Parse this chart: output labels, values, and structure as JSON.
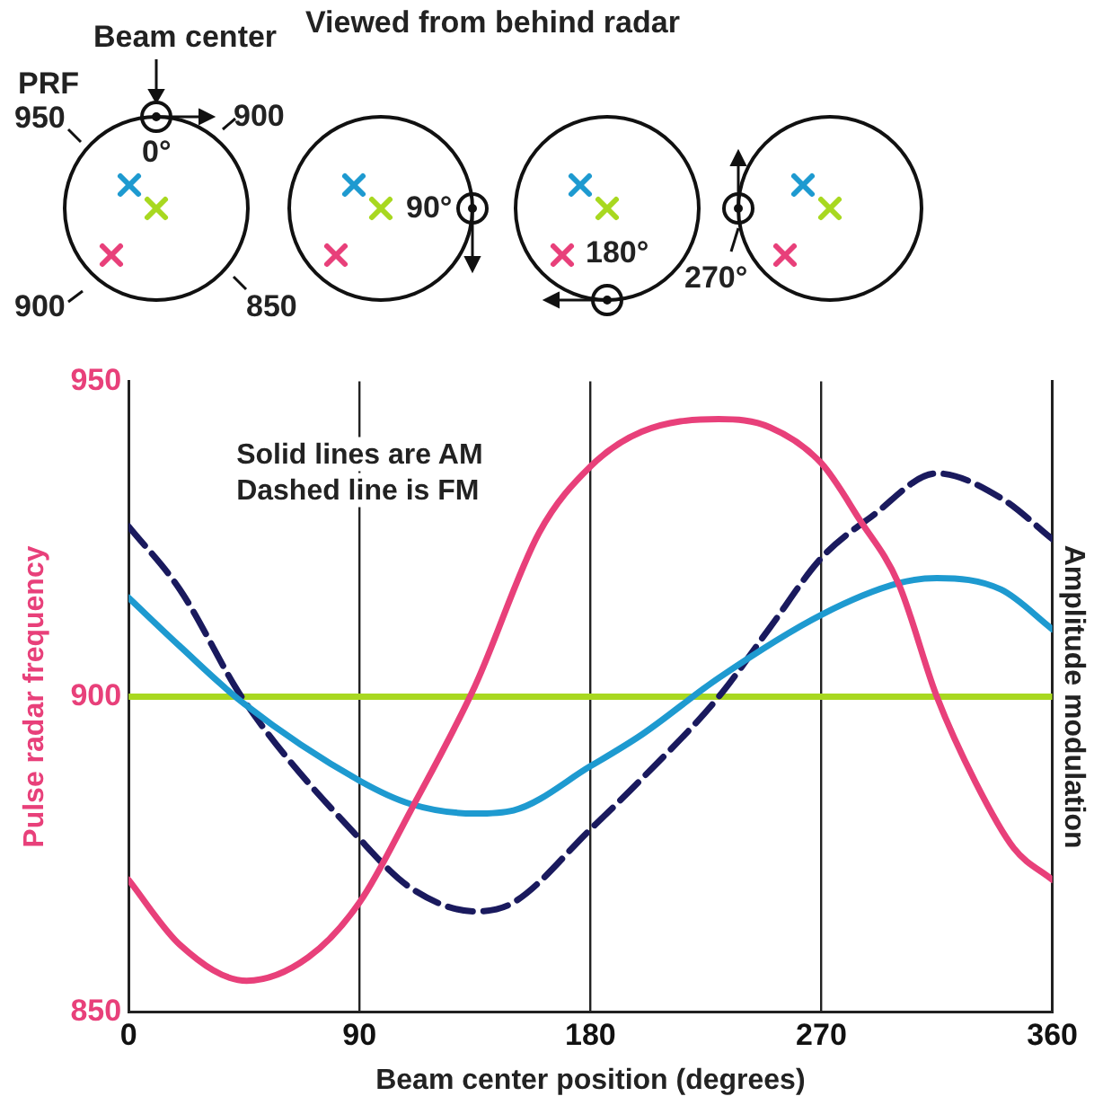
{
  "chart_data": {
    "type": "line",
    "title": "Viewed from behind radar",
    "xlabel": "Beam center position (degrees)",
    "ylabel": "Pulse radar frequency",
    "y2label": "Amplitude modulation",
    "annotations": [
      "Solid lines are AM",
      "Dashed line is FM",
      "Beam center",
      "PRF",
      "950",
      "900",
      "900",
      "850",
      "0°",
      "90°",
      "180°",
      "270°"
    ],
    "series": [
      {
        "color": "#e8407a",
        "x": [
          0,
          20,
          46,
          70,
          90,
          110,
          135,
          160,
          180,
          200,
          230,
          250,
          270,
          285,
          300,
          315,
          330,
          345,
          360
        ],
        "values": [
          871,
          860.7,
          855,
          858.7,
          867.4,
          882,
          901.7,
          926,
          936.5,
          942,
          944,
          942.7,
          937,
          928,
          918,
          900,
          886.5,
          876,
          871
        ]
      },
      {
        "color": "#1e9ad0",
        "x": [
          0,
          20,
          45,
          90,
          110,
          135,
          150,
          180,
          200,
          230,
          270,
          300,
          315,
          340,
          360
        ],
        "values": [
          915.7,
          908,
          898.9,
          886.7,
          883,
          881.5,
          882,
          889,
          894,
          903,
          913,
          918,
          918.8,
          917,
          910.7
        ]
      },
      {
        "color": "#1a1a5e",
        "line_style": "dashed",
        "x": [
          0,
          20,
          45,
          90,
          110,
          135,
          150,
          180,
          200,
          230,
          250,
          270,
          290,
          315,
          340,
          360
        ],
        "values": [
          927,
          917,
          899.4,
          877.5,
          869.7,
          866,
          867.4,
          879,
          887,
          900,
          911,
          922,
          928.7,
          935.4,
          931.5,
          925
        ]
      },
      {
        "color": "#a8d820",
        "x": [
          0,
          360
        ],
        "values": [
          900,
          900
        ]
      }
    ],
    "xlim": [
      0,
      360
    ],
    "xticks": [
      0,
      90,
      180,
      270,
      360
    ],
    "ylim": [
      850,
      950
    ],
    "yticks": [
      850,
      900,
      950
    ],
    "grid": "x",
    "legend": false,
    "marker": "none"
  }
}
